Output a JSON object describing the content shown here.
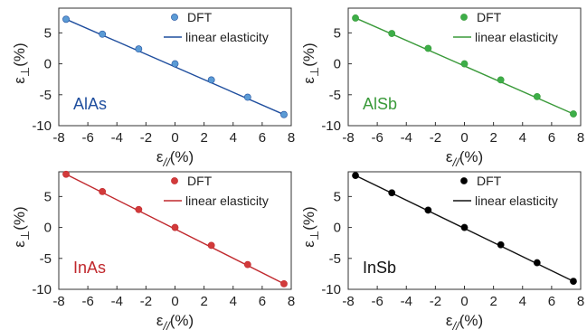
{
  "chart_data": [
    {
      "type": "scatter",
      "panel_label": "AlAs",
      "color": "#1f4e9e",
      "marker_color": "#5b9bd5",
      "xlabel": "ε//(%)",
      "ylabel": "ε⊥(%)",
      "xlim": [
        -8,
        8
      ],
      "ylim": [
        -10,
        9
      ],
      "xticks": [
        -8,
        -6,
        -4,
        -2,
        0,
        2,
        4,
        6,
        8
      ],
      "yticks": [
        -10,
        -5,
        0,
        5
      ],
      "legend": [
        "DFT",
        "linear elasticity"
      ],
      "legend_position": "top-right",
      "series": [
        {
          "name": "DFT",
          "x": [
            -7.5,
            -5,
            -2.5,
            0,
            2.5,
            5,
            7.5
          ],
          "y": [
            7.2,
            4.8,
            2.4,
            0,
            -2.6,
            -5.4,
            -8.2
          ]
        },
        {
          "name": "linear elasticity",
          "x": [
            -7.5,
            7.5
          ],
          "y": [
            7.2,
            -8.2
          ]
        }
      ]
    },
    {
      "type": "scatter",
      "panel_label": "AlSb",
      "color": "#3a9a3a",
      "marker_color": "#3dae48",
      "xlabel": "ε//(%)",
      "ylabel": "ε⊥(%)",
      "xlim": [
        -8,
        8
      ],
      "ylim": [
        -10,
        9
      ],
      "xticks": [
        -8,
        -6,
        -4,
        -2,
        0,
        2,
        4,
        6,
        8
      ],
      "yticks": [
        -10,
        -5,
        0,
        5
      ],
      "legend": [
        "DFT",
        "linear elasticity"
      ],
      "legend_position": "top-right",
      "series": [
        {
          "name": "DFT",
          "x": [
            -7.5,
            -5,
            -2.5,
            0,
            2.5,
            5,
            7.5
          ],
          "y": [
            7.4,
            4.9,
            2.5,
            0,
            -2.6,
            -5.3,
            -8.1
          ]
        },
        {
          "name": "linear elasticity",
          "x": [
            -7.5,
            7.5
          ],
          "y": [
            7.4,
            -8.1
          ]
        }
      ]
    },
    {
      "type": "scatter",
      "panel_label": "InAs",
      "color": "#c0282d",
      "marker_color": "#d23a3a",
      "xlabel": "ε//(%)",
      "ylabel": "ε⊥(%)",
      "xlim": [
        -8,
        8
      ],
      "ylim": [
        -10,
        9
      ],
      "xticks": [
        -8,
        -6,
        -4,
        -2,
        0,
        2,
        4,
        6,
        8
      ],
      "yticks": [
        -10,
        -5,
        0,
        5
      ],
      "legend": [
        "DFT",
        "linear elasticity"
      ],
      "legend_position": "top-right",
      "series": [
        {
          "name": "DFT",
          "x": [
            -7.5,
            -5,
            -2.5,
            0,
            2.5,
            5,
            7.5
          ],
          "y": [
            8.6,
            5.8,
            2.9,
            0,
            -2.9,
            -6.0,
            -9.1
          ]
        },
        {
          "name": "linear elasticity",
          "x": [
            -7.5,
            7.5
          ],
          "y": [
            8.6,
            -9.1
          ]
        }
      ]
    },
    {
      "type": "scatter",
      "panel_label": "InSb",
      "color": "#111111",
      "marker_color": "#000000",
      "xlabel": "ε//(%)",
      "ylabel": "ε⊥(%)",
      "xlim": [
        -8,
        8
      ],
      "ylim": [
        -10,
        9
      ],
      "xticks": [
        -8,
        -6,
        -4,
        -2,
        0,
        2,
        4,
        6,
        8
      ],
      "yticks": [
        -10,
        -5,
        0,
        5
      ],
      "legend": [
        "DFT",
        "linear elasticity"
      ],
      "legend_position": "top-right",
      "series": [
        {
          "name": "DFT",
          "x": [
            -7.5,
            -5,
            -2.5,
            0,
            2.5,
            5,
            7.5
          ],
          "y": [
            8.4,
            5.6,
            2.8,
            0,
            -2.8,
            -5.7,
            -8.7
          ]
        },
        {
          "name": "linear elasticity",
          "x": [
            -7.5,
            7.5
          ],
          "y": [
            8.4,
            -8.7
          ]
        }
      ]
    }
  ]
}
